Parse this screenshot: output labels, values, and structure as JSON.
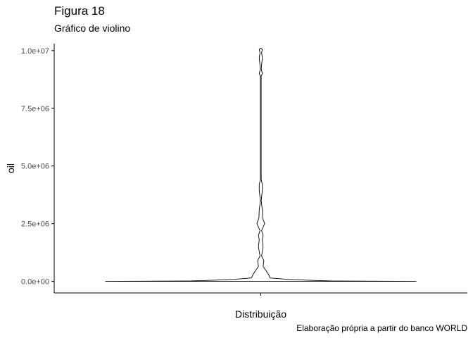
{
  "header": {
    "title": "Figura 18",
    "subtitle": "Gráfico de violino"
  },
  "footer": {
    "caption": "Elaboração própria a partir do banco WORLD"
  },
  "chart_data": {
    "type": "violin",
    "title": "Figura 18",
    "subtitle": "Gráfico de violino",
    "xlabel": "Distribuição",
    "ylabel": "oil",
    "caption": "Elaboração própria a partir do banco WORLD",
    "categories": [
      ""
    ],
    "ylim": [
      -500000,
      10300000
    ],
    "yticks": [
      0,
      2500000,
      5000000,
      7500000,
      10000000
    ],
    "ytick_labels": [
      "0.0e+00",
      "2.5e+06",
      "5.0e+06",
      "7.5e+06",
      "1.0e+07"
    ],
    "grid": false,
    "density_profile": [
      {
        "y": 0,
        "rel_width": 1.0
      },
      {
        "y": 20000,
        "rel_width": 0.45
      },
      {
        "y": 50000,
        "rel_width": 0.3
      },
      {
        "y": 90000,
        "rel_width": 0.17
      },
      {
        "y": 150000,
        "rel_width": 0.06
      },
      {
        "y": 300000,
        "rel_width": 0.05
      },
      {
        "y": 500000,
        "rel_width": 0.03
      },
      {
        "y": 650000,
        "rel_width": 0.015
      },
      {
        "y": 900000,
        "rel_width": 0.02
      },
      {
        "y": 1100000,
        "rel_width": 0.005
      },
      {
        "y": 1500000,
        "rel_width": 0.015
      },
      {
        "y": 1800000,
        "rel_width": 0.01
      },
      {
        "y": 2000000,
        "rel_width": 0.015
      },
      {
        "y": 2200000,
        "rel_width": 0.005
      },
      {
        "y": 2500000,
        "rel_width": 0.025
      },
      {
        "y": 2750000,
        "rel_width": 0.012
      },
      {
        "y": 3100000,
        "rel_width": 0.01
      },
      {
        "y": 3300000,
        "rel_width": 0.006
      },
      {
        "y": 3500000,
        "rel_width": 0.002
      },
      {
        "y": 3950000,
        "rel_width": 0.01
      },
      {
        "y": 4200000,
        "rel_width": 0.01
      },
      {
        "y": 4400000,
        "rel_width": 0.002
      },
      {
        "y": 8900000,
        "rel_width": 0.002
      },
      {
        "y": 9000000,
        "rel_width": 0.01
      },
      {
        "y": 9200000,
        "rel_width": 0.002
      },
      {
        "y": 9700000,
        "rel_width": 0.01
      },
      {
        "y": 9900000,
        "rel_width": 0.005
      },
      {
        "y": 10050000,
        "rel_width": 0.01
      },
      {
        "y": 10100000,
        "rel_width": 0.0
      }
    ]
  }
}
